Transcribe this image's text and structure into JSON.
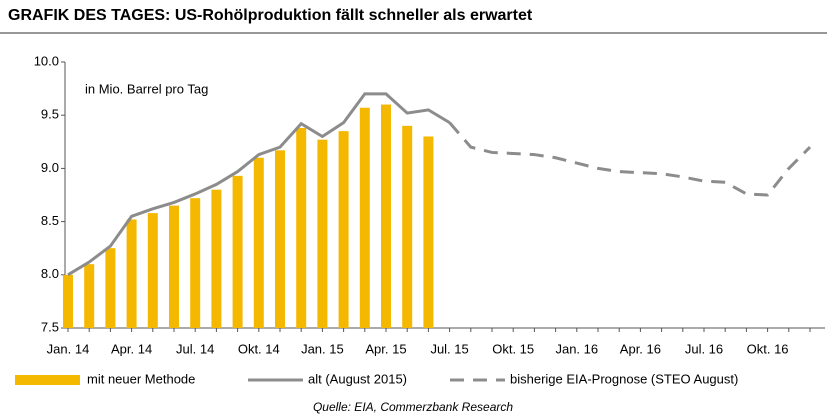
{
  "chart_data": {
    "type": "bar",
    "title": "GRAFIK DES TAGES: US-Rohölproduktion fällt schneller als erwartet",
    "annotation": "in Mio. Barrel pro Tag",
    "source": "Quelle: EIA, Commerzbank Research",
    "categories": [
      "Jan. 14",
      null,
      null,
      "Apr. 14",
      null,
      null,
      "Jul. 14",
      null,
      null,
      "Okt. 14",
      null,
      null,
      "Jan. 15",
      null,
      null,
      "Apr. 15",
      null,
      null,
      "Jul. 15",
      null,
      null,
      "Okt. 15",
      null,
      null,
      "Jan. 16",
      null,
      null,
      "Apr. 16",
      null,
      null,
      "Jul. 16",
      null,
      null,
      "Okt. 16",
      null,
      null
    ],
    "ylim": [
      7.5,
      10.0
    ],
    "yticks": [
      7.5,
      {
        "value": 8,
        "label": "8.0"
      },
      8.5,
      {
        "value": 9,
        "label": "9.0"
      },
      9.5,
      {
        "value": 10,
        "label": "10.0"
      }
    ],
    "series": [
      {
        "name": "mit neuer Methode",
        "type": "bar",
        "color": "#f5b800",
        "values": [
          8.0,
          8.1,
          8.25,
          8.52,
          8.58,
          8.65,
          8.72,
          8.8,
          8.93,
          9.1,
          9.17,
          9.38,
          9.27,
          9.35,
          9.57,
          9.6,
          9.4,
          9.3,
          null,
          null,
          null,
          null,
          null,
          null,
          null,
          null,
          null,
          null,
          null,
          null,
          null,
          null,
          null,
          null,
          null,
          null
        ]
      },
      {
        "name": "alt (August 2015)",
        "type": "line",
        "color": "#8c8c8c",
        "dashed": false,
        "values": [
          8.0,
          8.12,
          8.27,
          8.55,
          8.62,
          8.68,
          8.76,
          8.85,
          8.97,
          9.13,
          9.2,
          9.42,
          9.3,
          9.43,
          9.7,
          9.7,
          9.52,
          9.55,
          9.43,
          null,
          null,
          null,
          null,
          null,
          null,
          null,
          null,
          null,
          null,
          null,
          null,
          null,
          null,
          null,
          null,
          null
        ]
      },
      {
        "name": "bisherige EIA-Prognose (STEO August)",
        "type": "line",
        "color": "#8c8c8c",
        "dashed": true,
        "values": [
          null,
          null,
          null,
          null,
          null,
          null,
          null,
          null,
          null,
          null,
          null,
          null,
          null,
          null,
          null,
          null,
          null,
          null,
          9.43,
          9.2,
          9.15,
          9.14,
          9.13,
          9.1,
          9.05,
          9.0,
          8.97,
          8.96,
          8.95,
          8.92,
          8.88,
          8.87,
          8.76,
          8.75,
          9.0,
          9.2
        ]
      }
    ]
  }
}
